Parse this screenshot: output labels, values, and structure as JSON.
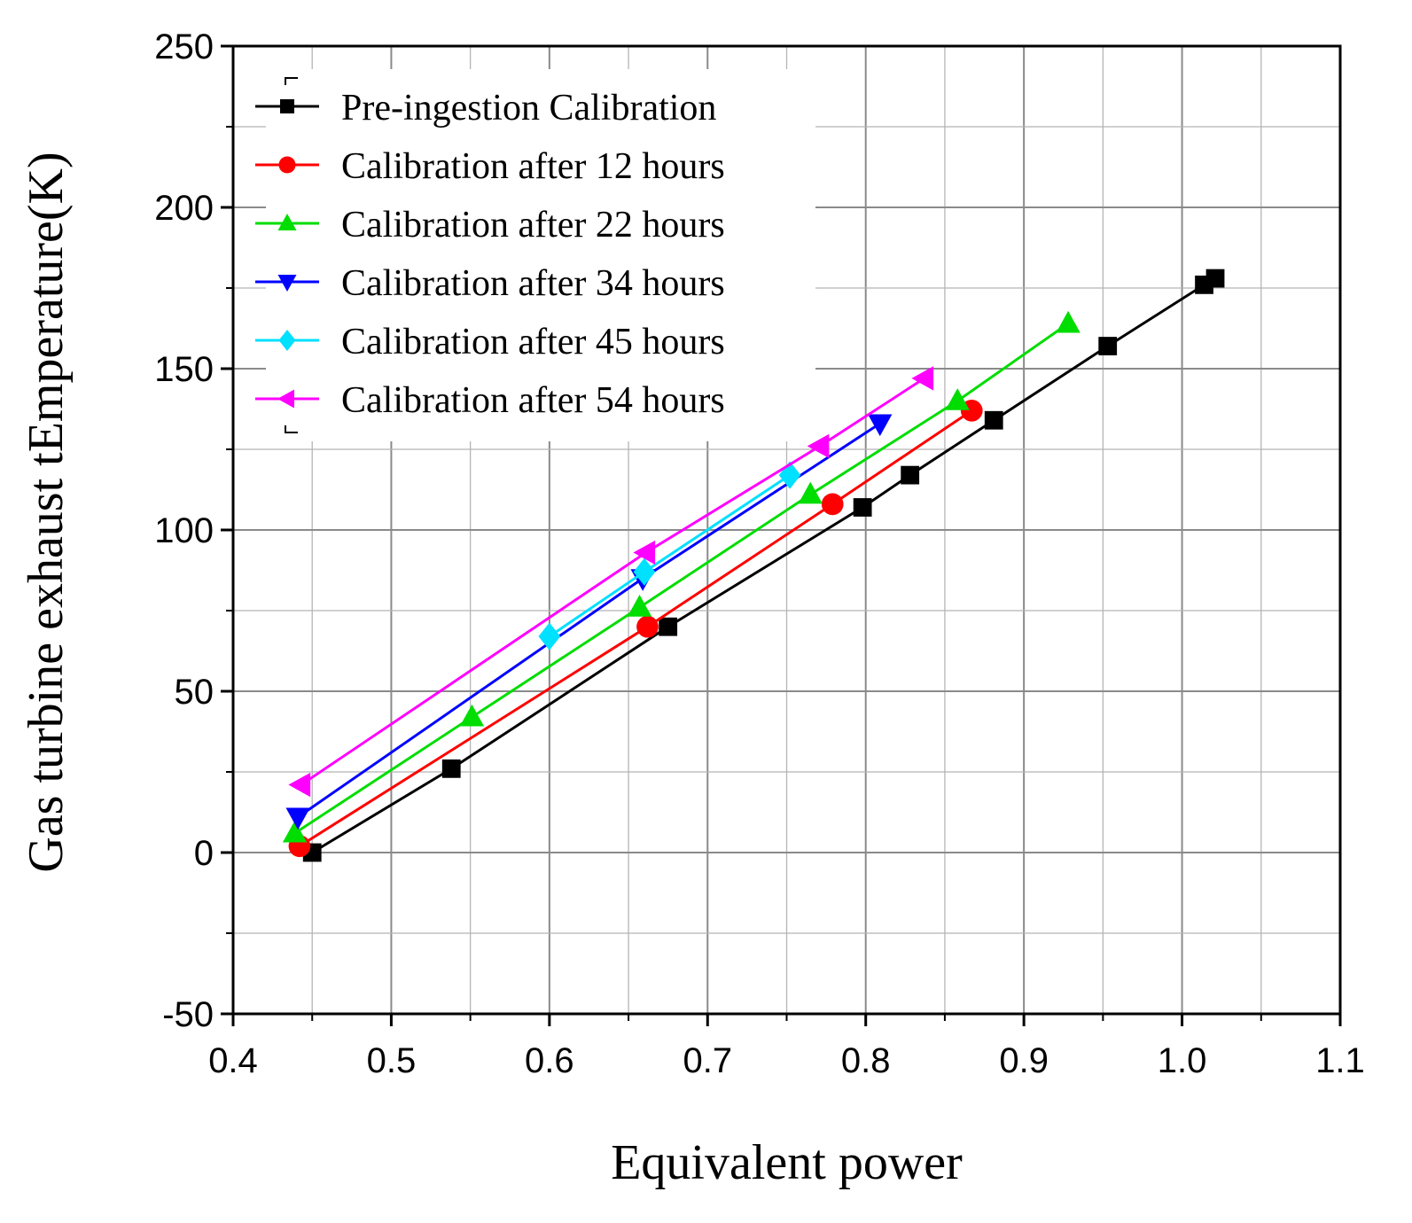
{
  "chart_data": {
    "type": "line",
    "xlabel": "Equivalent power",
    "ylabel": "Gas turbine exhaust tEmperature(K)",
    "xlim": [
      0.4,
      1.1
    ],
    "ylim": [
      -50,
      250
    ],
    "xticks": [
      "0.4",
      "0.5",
      "0.6",
      "0.7",
      "0.8",
      "0.9",
      "1.0",
      "1.1"
    ],
    "yticks": [
      "-50",
      "0",
      "50",
      "100",
      "150",
      "200",
      "250"
    ],
    "grid": true,
    "legend_position": "top-left",
    "series": [
      {
        "name": "Pre-ingestion Calibration",
        "color": "#000000",
        "marker": "square",
        "x": [
          0.45,
          0.538,
          0.675,
          0.798,
          0.828,
          0.881,
          0.953,
          1.014,
          1.021
        ],
        "y": [
          0,
          26,
          70,
          107,
          117,
          134,
          157,
          176,
          178
        ]
      },
      {
        "name": "Calibration after 12 hours",
        "color": "#ff0000",
        "marker": "circle",
        "x": [
          0.442,
          0.662,
          0.779,
          0.867
        ],
        "y": [
          2,
          70,
          108,
          137
        ]
      },
      {
        "name": "Calibration after 22 hours",
        "color": "#00dd00",
        "marker": "triangle-up",
        "x": [
          0.439,
          0.551,
          0.657,
          0.765,
          0.858,
          0.928
        ],
        "y": [
          6,
          42,
          76,
          111,
          140,
          164
        ]
      },
      {
        "name": "Calibration after 34 hours",
        "color": "#0000ff",
        "marker": "triangle-down",
        "x": [
          0.441,
          0.659,
          0.809
        ],
        "y": [
          11,
          85,
          133
        ]
      },
      {
        "name": "Calibration after 45 hours",
        "color": "#00e0ff",
        "marker": "diamond",
        "x": [
          0.6,
          0.66,
          0.752
        ],
        "y": [
          67,
          87,
          117
        ]
      },
      {
        "name": "Calibration after 54 hours",
        "color": "#ff00ff",
        "marker": "triangle-left",
        "x": [
          0.443,
          0.661,
          0.771,
          0.837
        ],
        "y": [
          21,
          93,
          126,
          147
        ]
      }
    ]
  }
}
